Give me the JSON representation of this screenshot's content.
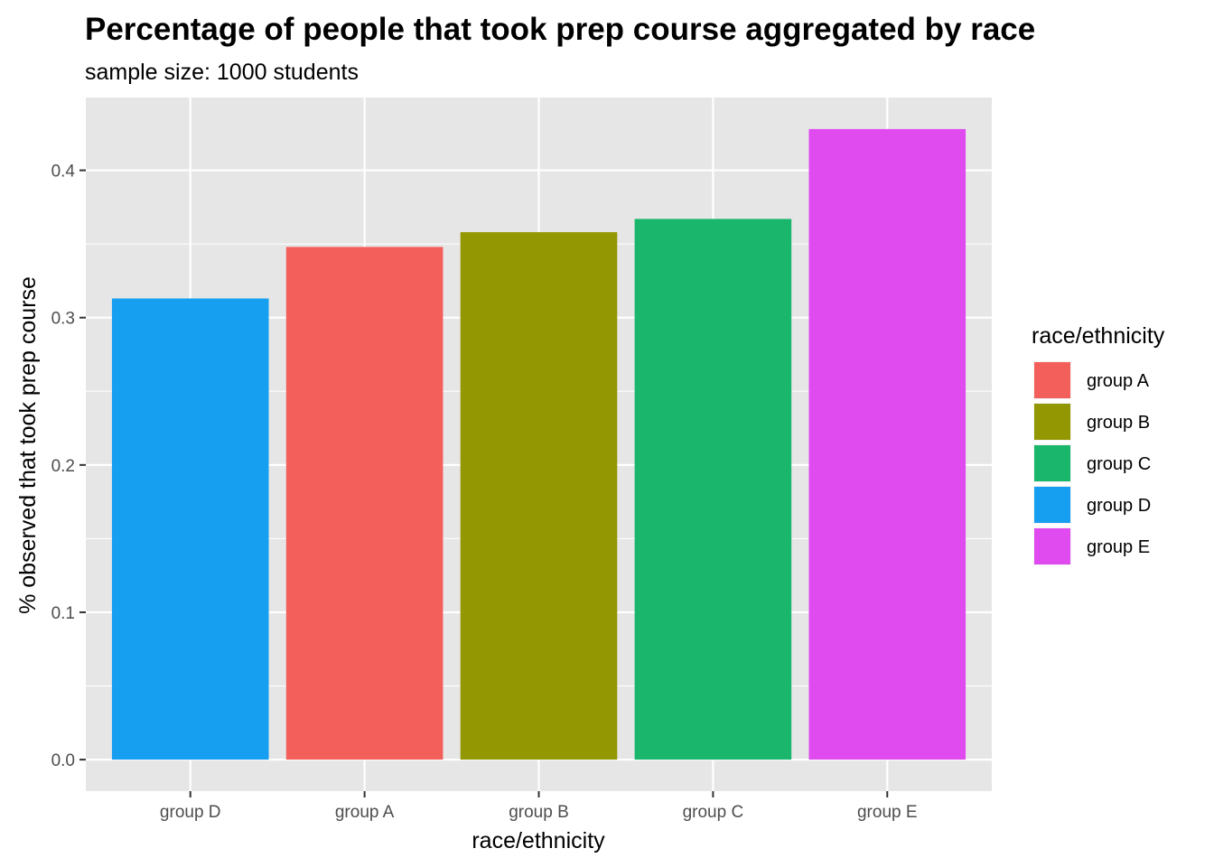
{
  "chart_data": {
    "type": "bar",
    "title": "Percentage of people that took prep course aggregated by race",
    "subtitle": "sample size: 1000 students",
    "xlabel": "race/ethnicity",
    "ylabel": "% observed that took prep course",
    "categories": [
      "group D",
      "group A",
      "group B",
      "group C",
      "group E"
    ],
    "values": [
      0.313,
      0.348,
      0.358,
      0.367,
      0.428
    ],
    "bar_colors": [
      "#169EF1",
      "#F35F5B",
      "#939701",
      "#19B66C",
      "#E04BF0"
    ],
    "yticks": [
      0.0,
      0.1,
      0.2,
      0.3,
      0.4
    ],
    "ytick_labels": [
      "0.0",
      "0.1",
      "0.2",
      "0.3",
      "0.4"
    ],
    "ylim": [
      -0.0214,
      0.4494
    ],
    "grid": true,
    "panel_background": "#E6E6E6",
    "gridline_color": "#FFFFFF",
    "legend": {
      "title": "race/ethnicity",
      "position": "right",
      "items": [
        {
          "label": "group A",
          "color": "#F35F5B"
        },
        {
          "label": "group B",
          "color": "#939701"
        },
        {
          "label": "group C",
          "color": "#19B66C"
        },
        {
          "label": "group D",
          "color": "#169EF1"
        },
        {
          "label": "group E",
          "color": "#E04BF0"
        }
      ]
    }
  }
}
